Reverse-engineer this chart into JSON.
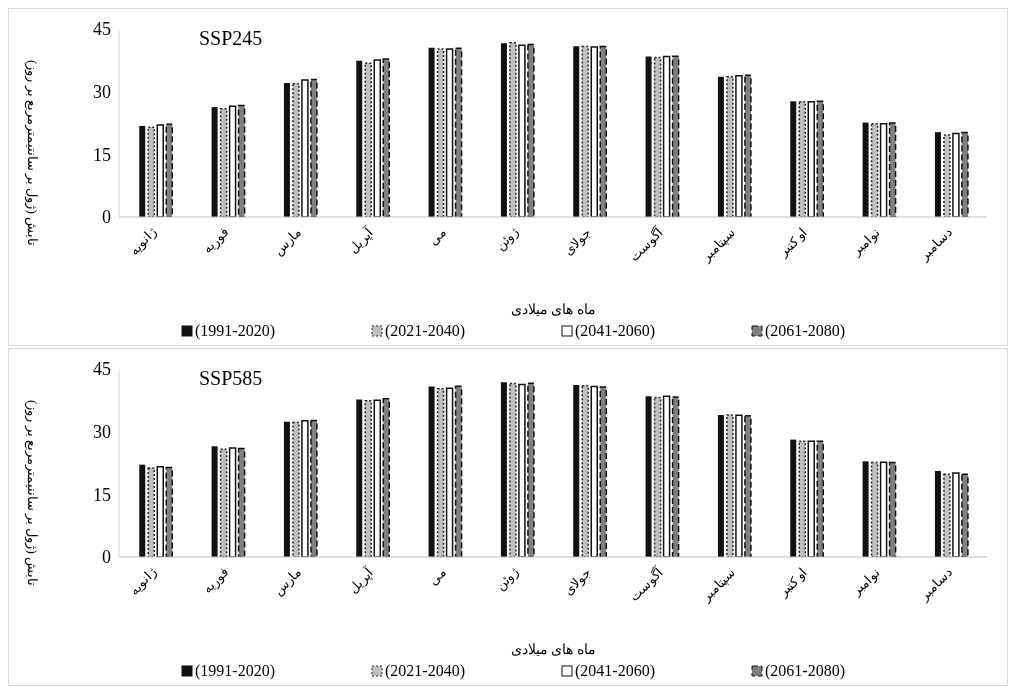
{
  "chart_data": [
    {
      "type": "bar",
      "title": "SSP245",
      "xlabel": "ماه های میلادی",
      "ylabel": "تابش (ژول بر سانتیمترمربع بر روز)",
      "categories": [
        "ژانویه",
        "فوریه",
        "مارس",
        "آپریل",
        "می",
        "ژوئن",
        "جولای",
        "آگوست",
        "سپتامبر",
        "او کتبر",
        "نوامبر",
        "دسامبر"
      ],
      "series": [
        {
          "name": "(1991-2020)",
          "color": "#111111",
          "values": [
            21.8,
            26.3,
            32.1,
            37.4,
            40.5,
            41.6,
            40.9,
            38.4,
            33.6,
            27.7,
            22.6,
            20.3
          ]
        },
        {
          "name": "(2021-2040)",
          "color": "#bfbfbf",
          "values": [
            21.5,
            25.9,
            31.9,
            36.8,
            40.2,
            41.7,
            40.8,
            38.2,
            33.6,
            27.6,
            22.3,
            19.6
          ]
        },
        {
          "name": "(2041-2060)",
          "color": "#ffffff",
          "values": [
            22.0,
            26.5,
            32.8,
            37.6,
            40.2,
            41.1,
            40.7,
            38.4,
            33.8,
            27.6,
            22.3,
            20.0
          ]
        },
        {
          "name": "(2061-2080)",
          "color": "#808080",
          "values": [
            22.2,
            26.7,
            32.9,
            37.8,
            40.4,
            41.3,
            40.8,
            38.5,
            33.9,
            27.7,
            22.5,
            20.2
          ]
        }
      ],
      "ylim": [
        0,
        45
      ],
      "yticks": [
        0,
        15,
        30,
        45
      ],
      "grid": false,
      "legend": "bottom"
    },
    {
      "type": "bar",
      "title": "SSP585",
      "xlabel": "ماه های میلادی",
      "ylabel": "تابش (ژول بر سانتیمترمربع بر روز)",
      "categories": [
        "ژانویه",
        "فوریه",
        "مارس",
        "آپریل",
        "می",
        "ژوئن",
        "جولای",
        "آگوست",
        "سپتامبر",
        "او کتبر",
        "نوامبر",
        "دسامبر"
      ],
      "series": [
        {
          "name": "(1991-2020)",
          "color": "#111111",
          "values": [
            22.1,
            26.5,
            32.4,
            37.7,
            40.8,
            41.8,
            41.2,
            38.5,
            34.0,
            28.1,
            22.9,
            20.6
          ]
        },
        {
          "name": "(2021-2040)",
          "color": "#bfbfbf",
          "values": [
            21.3,
            25.8,
            32.2,
            37.4,
            40.3,
            41.5,
            41.0,
            38.2,
            34.0,
            27.7,
            22.6,
            19.8
          ]
        },
        {
          "name": "(2041-2060)",
          "color": "#ffffff",
          "values": [
            21.6,
            26.1,
            32.6,
            37.5,
            40.4,
            41.3,
            40.8,
            38.5,
            33.9,
            27.7,
            22.7,
            20.1
          ]
        },
        {
          "name": "(2061-2080)",
          "color": "#808080",
          "values": [
            21.4,
            26.0,
            32.7,
            37.9,
            40.9,
            41.6,
            40.7,
            38.3,
            33.8,
            27.7,
            22.6,
            19.8
          ]
        }
      ],
      "ylim": [
        0,
        45
      ],
      "yticks": [
        0,
        15,
        30,
        45
      ],
      "grid": false,
      "legend": "bottom"
    }
  ]
}
